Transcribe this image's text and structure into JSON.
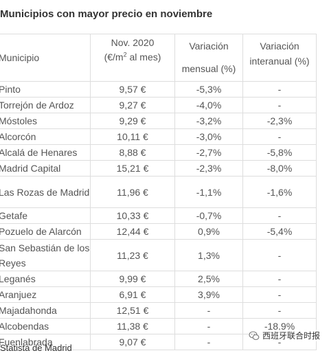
{
  "title": "Municipios con mayor precio en noviembre",
  "headers": {
    "municipio": "Municipio",
    "price_line1": "Nov. 2020",
    "price_line2_pre": "(€/m",
    "price_line2_sup": "2",
    "price_line2_post": " al mes)",
    "monthly_line1": "Variación",
    "monthly_line2": "mensual (%)",
    "annual_line1": "Variación",
    "annual_line2": "interanual (%)"
  },
  "rows": [
    {
      "municipio": "Pinto",
      "price": "9,57 €",
      "monthly": "-5,3%",
      "annual": "-"
    },
    {
      "municipio": "Torrejón de Ardoz",
      "price": "9,27 €",
      "monthly": "-4,0%",
      "annual": "-"
    },
    {
      "municipio": "Móstoles",
      "price": "9,29 €",
      "monthly": "-3,2%",
      "annual": "-2,3%"
    },
    {
      "municipio": "Alcorcón",
      "price": "10,11 €",
      "monthly": "-3,0%",
      "annual": "-"
    },
    {
      "municipio": "Alcalá de Henares",
      "price": "8,88 €",
      "monthly": "-2,7%",
      "annual": "-5,8%"
    },
    {
      "municipio": "Madrid Capital",
      "price": "15,21 €",
      "monthly": "-2,3%",
      "annual": "-8,0%"
    },
    {
      "municipio": "Las Rozas de Madrid",
      "price": "11,96 €",
      "monthly": "-1,1%",
      "annual": "-1,6%"
    },
    {
      "municipio": "Getafe",
      "price": "10,33 €",
      "monthly": "-0,7%",
      "annual": "-"
    },
    {
      "municipio": "Pozuelo de Alarcón",
      "price": "12,44 €",
      "monthly": "0,9%",
      "annual": "-5,4%"
    },
    {
      "municipio": "San Sebastián de los Reyes",
      "price": "11,23 €",
      "monthly": "1,3%",
      "annual": "-"
    },
    {
      "municipio": "Leganés",
      "price": "9,99 €",
      "monthly": "2,5%",
      "annual": "-"
    },
    {
      "municipio": "Aranjuez",
      "price": "6,91 €",
      "monthly": "3,9%",
      "annual": "-"
    },
    {
      "municipio": "Majadahonda",
      "price": "12,51 €",
      "monthly": "-",
      "annual": "-"
    },
    {
      "municipio": "Alcobendas",
      "price": "11,38 €",
      "monthly": "-",
      "annual": "-18,9%"
    },
    {
      "municipio": "Fuenlabrada",
      "price": "9,07 €",
      "monthly": "-",
      "annual": "-"
    }
  ],
  "footer": "Statista de Madrid",
  "watermark": {
    "icon": "wechat-icon",
    "text": "西班牙联合时报"
  }
}
